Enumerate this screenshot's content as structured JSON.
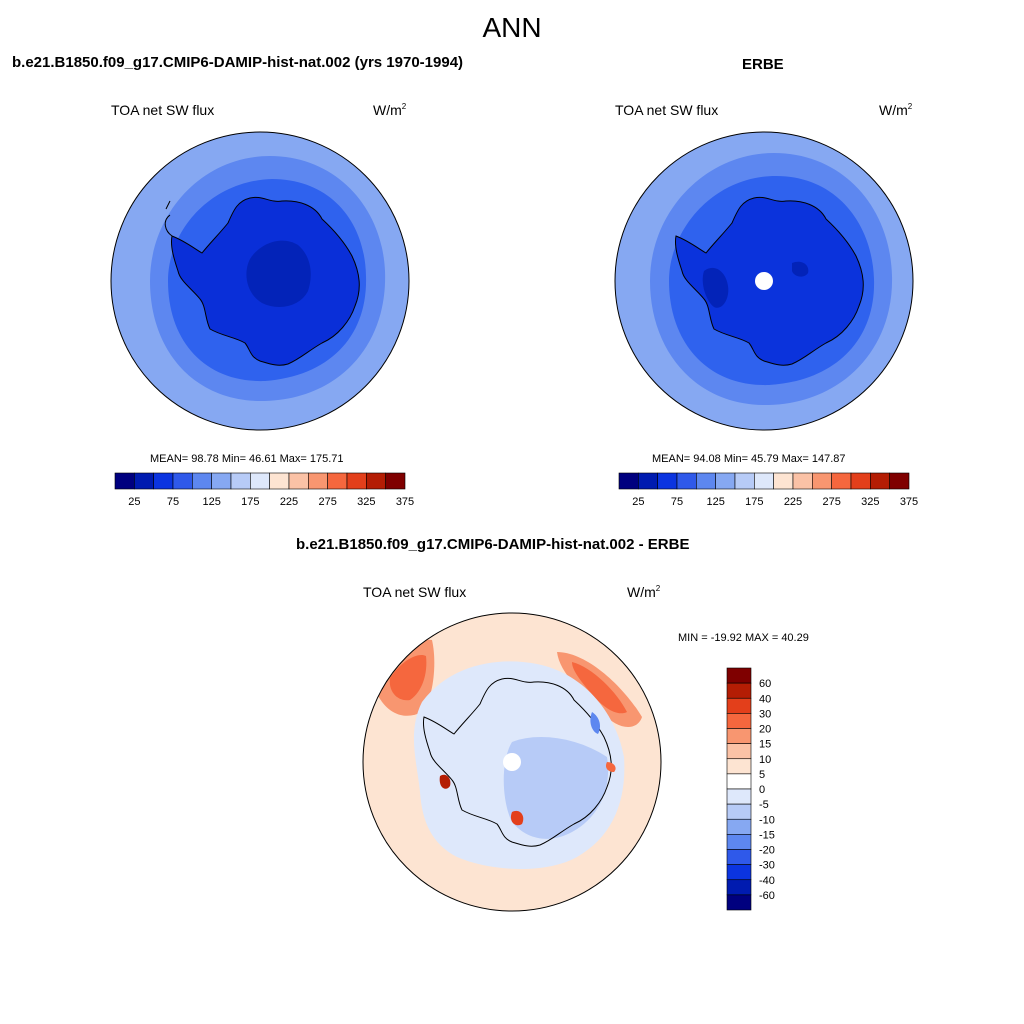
{
  "title": "ANN",
  "colors": {
    "ocean_low": "#0a2fd8",
    "ocean_mid": "#2f62ee",
    "ocean_high": "#5d87f0",
    "ocean_outer": "#86a8f2",
    "antarctica_model": "#0a2fd8",
    "antarctica_obs": "#0b33dc",
    "plateau": "#0323b8",
    "missing_data": "#ffffff",
    "coastline": "#000000"
  },
  "panels": {
    "model": {
      "title": "b.e21.B1850.f09_g17.CMIP6-DAMIP-hist-nat.002 (yrs 1970-1994)",
      "field": "TOA net SW flux",
      "unit_base": "W/m",
      "unit_exp": "2",
      "stats": "MEAN=  98.78  Min=  46.61  Max= 175.71",
      "colorbar": {
        "labels": [
          "25",
          "75",
          "125",
          "175",
          "225",
          "275",
          "325",
          "375"
        ],
        "colors": [
          "#00007f",
          "#001bb0",
          "#0b34e0",
          "#2f59ea",
          "#5d87f0",
          "#86a8f2",
          "#b7cbf7",
          "#dee8fb",
          "#fde4d2",
          "#fbc2a6",
          "#f89670",
          "#f5673e",
          "#e33f1b",
          "#b41d04",
          "#7f0000"
        ]
      }
    },
    "obs": {
      "title": "ERBE",
      "field": "TOA net SW flux",
      "unit_base": "W/m",
      "unit_exp": "2",
      "stats": "MEAN=  94.08  Min=  45.79  Max= 147.87",
      "colorbar": {
        "labels": [
          "25",
          "75",
          "125",
          "175",
          "225",
          "275",
          "325",
          "375"
        ],
        "colors": [
          "#00007f",
          "#001bb0",
          "#0b34e0",
          "#2f59ea",
          "#5d87f0",
          "#86a8f2",
          "#b7cbf7",
          "#dee8fb",
          "#fde4d2",
          "#fbc2a6",
          "#f89670",
          "#f5673e",
          "#e33f1b",
          "#b41d04",
          "#7f0000"
        ]
      }
    },
    "diff": {
      "title": "b.e21.B1850.f09_g17.CMIP6-DAMIP-hist-nat.002 - ERBE",
      "field": "TOA net SW flux",
      "unit_base": "W/m",
      "unit_exp": "2",
      "stats": "MIN = -19.92 MAX =  40.29",
      "colorbar": {
        "labels": [
          "60",
          "40",
          "30",
          "20",
          "15",
          "10",
          "5",
          "0",
          "-5",
          "-10",
          "-15",
          "-20",
          "-30",
          "-40",
          "-60"
        ],
        "colors": [
          "#7f0000",
          "#b41d04",
          "#e33f1b",
          "#f5673e",
          "#f89670",
          "#fbc2a6",
          "#fde4d2",
          "#ffffff",
          "#dee8fb",
          "#b7cbf7",
          "#86a8f2",
          "#5d87f0",
          "#2f59ea",
          "#0b34e0",
          "#001bb0",
          "#00007f"
        ]
      },
      "fill": {
        "background": "#fde4d2",
        "weak_positive": "#fbc2a6",
        "strong_positive": "#f5673e",
        "weak_negative": "#dee8fb",
        "mid_negative": "#b7cbf7",
        "strong_negative": "#5d87f0"
      }
    }
  }
}
